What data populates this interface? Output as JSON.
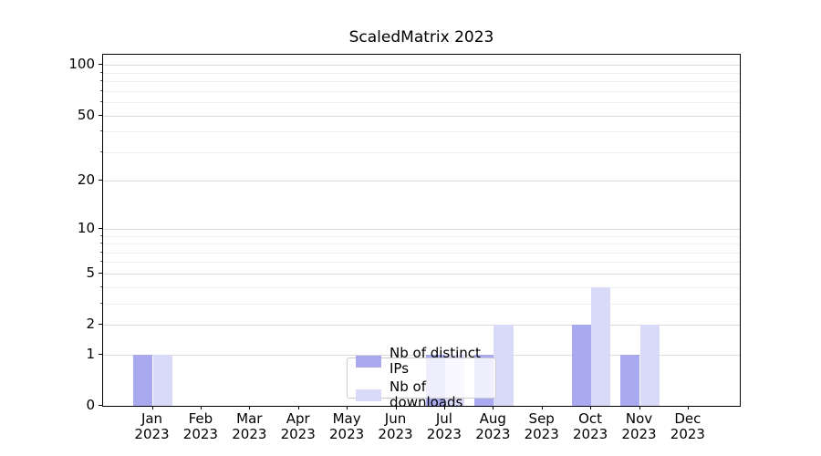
{
  "chart_data": {
    "type": "bar",
    "title": "ScaledMatrix 2023",
    "categories": [
      "Jan",
      "Feb",
      "Mar",
      "Apr",
      "May",
      "Jun",
      "Jul",
      "Aug",
      "Sep",
      "Oct",
      "Nov",
      "Dec"
    ],
    "year_label": "2023",
    "series": [
      {
        "name": "Nb of distinct IPs",
        "color": "#a9a9f0",
        "values": [
          1,
          0,
          0,
          0,
          0,
          0,
          1,
          1,
          0,
          2,
          1,
          0
        ]
      },
      {
        "name": "Nb of downloads",
        "color": "#d9d9f8",
        "values": [
          1,
          0,
          0,
          0,
          0,
          0,
          1,
          2,
          0,
          4,
          2,
          0
        ]
      }
    ],
    "y_axis": {
      "scale": "log1p",
      "ticks": [
        0,
        1,
        2,
        5,
        10,
        20,
        50,
        100
      ],
      "minor_ticks": [
        3,
        4,
        6,
        7,
        8,
        9,
        30,
        40,
        60,
        70,
        80,
        90
      ],
      "range_max": 115
    },
    "grid": {
      "major_color": "#dcdcdc",
      "minor_color": "#efefef"
    },
    "legend": {
      "position": "lower center",
      "items": [
        "Nb of distinct IPs",
        "Nb of downloads"
      ]
    },
    "axis_color": "#000000",
    "background_color": "#ffffff"
  }
}
